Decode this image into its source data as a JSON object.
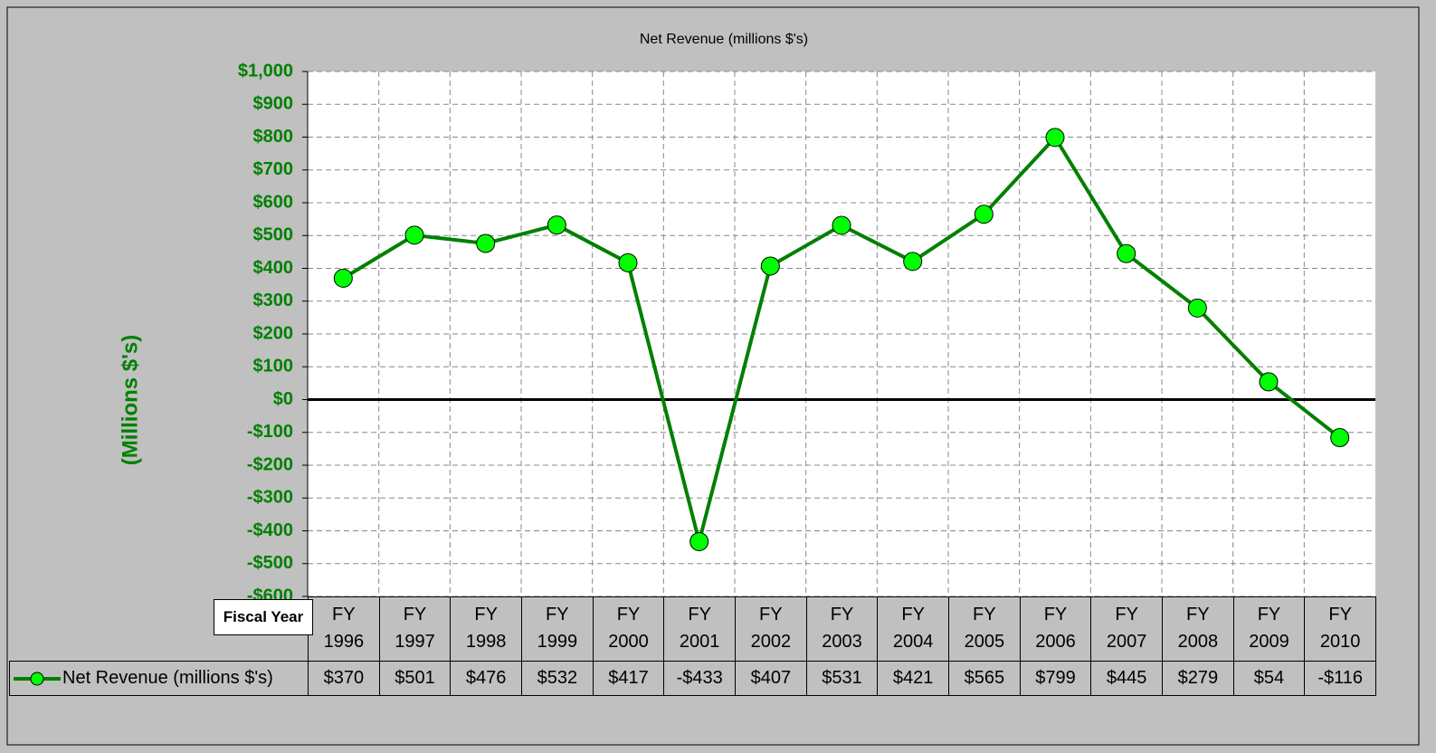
{
  "chart_data": {
    "type": "line",
    "title": "Net Revenue (millions $'s)",
    "y_label": "(Millions $'s)",
    "table_header": "Fiscal Year",
    "categories": [
      "FY\n1996",
      "FY\n1997",
      "FY\n1998",
      "FY\n1999",
      "FY\n2000",
      "FY\n2001",
      "FY\n2002",
      "FY\n2003",
      "FY\n2004",
      "FY\n2005",
      "FY\n2006",
      "FY\n2007",
      "FY\n2008",
      "FY\n2009",
      "FY\n2010"
    ],
    "series": [
      {
        "name": "Net Revenue (millions $'s)",
        "color": "#008000",
        "marker_color": "#00ff00",
        "values": [
          370,
          501,
          476,
          532,
          417,
          -433,
          407,
          531,
          421,
          565,
          799,
          445,
          279,
          54,
          -116
        ],
        "value_labels": [
          "$370",
          "$501",
          "$476",
          "$532",
          "$417",
          "-$433",
          "$407",
          "$531",
          "$421",
          "$565",
          "$799",
          "$445",
          "$279",
          "$54",
          "-$116"
        ]
      }
    ],
    "ylim": [
      -600,
      1000
    ],
    "yticks": [
      {
        "value": 1000,
        "label": "$1,000"
      },
      {
        "value": 900,
        "label": "$900"
      },
      {
        "value": 800,
        "label": "$800"
      },
      {
        "value": 700,
        "label": "$700"
      },
      {
        "value": 600,
        "label": "$600"
      },
      {
        "value": 500,
        "label": "$500"
      },
      {
        "value": 400,
        "label": "$400"
      },
      {
        "value": 300,
        "label": "$300"
      },
      {
        "value": 200,
        "label": "$200"
      },
      {
        "value": 100,
        "label": "$100"
      },
      {
        "value": 0,
        "label": "$0"
      },
      {
        "value": -100,
        "label": "-$100"
      },
      {
        "value": -200,
        "label": "-$200"
      },
      {
        "value": -300,
        "label": "-$300"
      },
      {
        "value": -400,
        "label": "-$400"
      },
      {
        "value": -500,
        "label": "-$500"
      },
      {
        "value": -600,
        "label": "-$600"
      }
    ],
    "grid": true,
    "axis_color": "#008000"
  }
}
